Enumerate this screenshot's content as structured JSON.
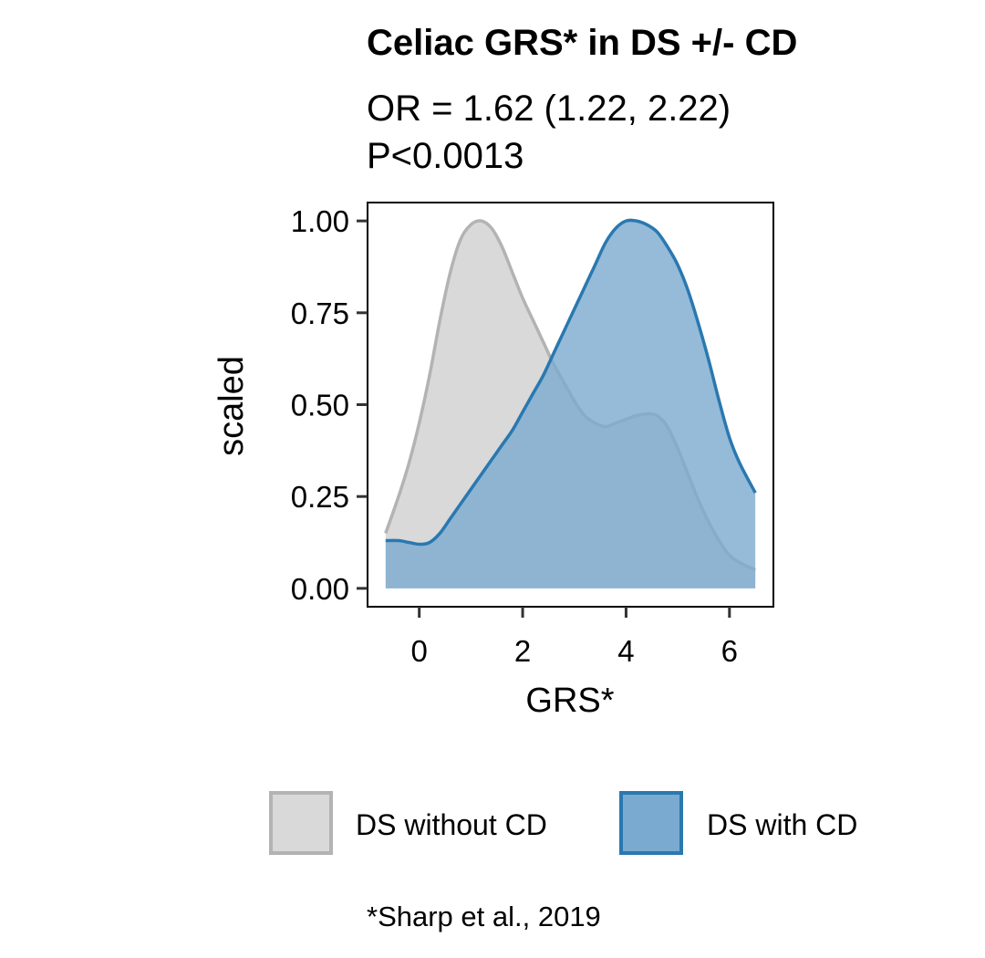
{
  "chart_data": {
    "type": "area",
    "title": "Celiac GRS* in DS +/- CD",
    "subtitle_lines": [
      "OR = 1.62 (1.22, 2.22)",
      "P<0.0013"
    ],
    "xlabel": "GRS*",
    "ylabel": "scaled",
    "xlim": [
      -1.0,
      6.85
    ],
    "ylim": [
      -0.05,
      1.05
    ],
    "xticks": [
      0,
      2,
      4,
      6
    ],
    "xtick_labels": [
      "0",
      "2",
      "4",
      "6"
    ],
    "yticks": [
      0,
      0.25,
      0.5,
      0.75,
      1.0
    ],
    "ytick_labels": [
      "0.00",
      "0.25",
      "0.50",
      "0.75",
      "1.00"
    ],
    "grid": false,
    "legend_position": "bottom",
    "series": [
      {
        "name": "DS without CD",
        "fill_color": "#d9d9d9",
        "line_color": "#b3b3b3",
        "x": [
          -0.65,
          -0.4,
          -0.2,
          0.0,
          0.2,
          0.4,
          0.6,
          0.8,
          1.0,
          1.2,
          1.4,
          1.6,
          1.8,
          2.0,
          2.2,
          2.4,
          2.6,
          2.8,
          3.0,
          3.2,
          3.4,
          3.6,
          3.8,
          4.0,
          4.2,
          4.4,
          4.6,
          4.8,
          5.0,
          5.2,
          5.4,
          5.6,
          5.8,
          6.0,
          6.2,
          6.5
        ],
        "y": [
          0.15,
          0.25,
          0.34,
          0.45,
          0.58,
          0.73,
          0.86,
          0.95,
          0.99,
          1.0,
          0.98,
          0.93,
          0.86,
          0.79,
          0.73,
          0.67,
          0.61,
          0.56,
          0.51,
          0.47,
          0.45,
          0.44,
          0.45,
          0.46,
          0.47,
          0.475,
          0.47,
          0.44,
          0.38,
          0.31,
          0.24,
          0.18,
          0.13,
          0.09,
          0.07,
          0.05
        ]
      },
      {
        "name": "DS with CD",
        "fill_color": "#7aaacf",
        "line_color": "#2a78b0",
        "x": [
          -0.65,
          -0.4,
          -0.2,
          0.0,
          0.2,
          0.4,
          0.6,
          0.8,
          1.0,
          1.2,
          1.4,
          1.6,
          1.8,
          2.0,
          2.2,
          2.4,
          2.6,
          2.8,
          3.0,
          3.2,
          3.4,
          3.6,
          3.8,
          4.0,
          4.2,
          4.4,
          4.6,
          4.8,
          5.0,
          5.2,
          5.4,
          5.6,
          5.8,
          6.0,
          6.2,
          6.5
        ],
        "y": [
          0.13,
          0.13,
          0.125,
          0.12,
          0.125,
          0.15,
          0.19,
          0.23,
          0.27,
          0.31,
          0.35,
          0.39,
          0.43,
          0.48,
          0.53,
          0.58,
          0.64,
          0.7,
          0.76,
          0.82,
          0.88,
          0.94,
          0.98,
          1.0,
          1.0,
          0.99,
          0.97,
          0.93,
          0.88,
          0.81,
          0.72,
          0.62,
          0.51,
          0.41,
          0.34,
          0.26
        ]
      }
    ],
    "caption": "*Sharp et al., 2019"
  }
}
